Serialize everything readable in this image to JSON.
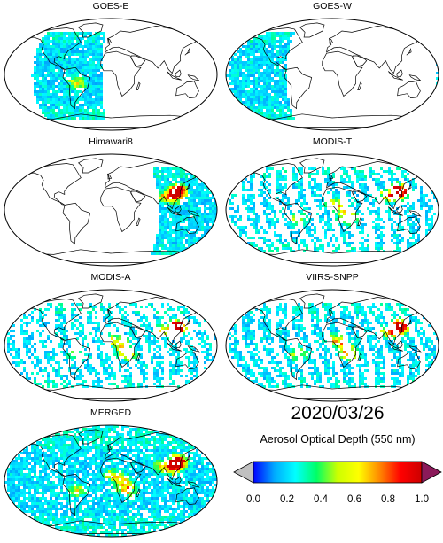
{
  "panels": [
    {
      "title": "GOES-E",
      "coverage": "lon-range",
      "lon_range": [
        -135,
        -15
      ],
      "lat_range": [
        -70,
        70
      ],
      "density": 0.92
    },
    {
      "title": "GOES-W",
      "coverage": "lon-range",
      "lon_range": [
        -180,
        -80
      ],
      "lat_range": [
        -70,
        70
      ],
      "density": 0.9,
      "wrap": true
    },
    {
      "title": "Himawari8",
      "coverage": "lon-range",
      "lon_range": [
        80,
        180
      ],
      "lat_range": [
        -70,
        70
      ],
      "density": 0.9,
      "wrap": true
    },
    {
      "title": "MODIS-T",
      "coverage": "swaths",
      "density": 0.62
    },
    {
      "title": "MODIS-A",
      "coverage": "swaths",
      "density": 0.62
    },
    {
      "title": "VIIRS-SNPP",
      "coverage": "swaths",
      "density": 0.72
    },
    {
      "title": "MERGED",
      "coverage": "global",
      "density": 0.82
    }
  ],
  "date": "2020/03/26",
  "colorbar": {
    "title": "Aerosol Optical Depth (550 nm)",
    "ticks": [
      "0.0",
      "0.2",
      "0.4",
      "0.6",
      "0.8",
      "1.0"
    ],
    "range": [
      0.0,
      1.0
    ],
    "colors": [
      "#0000ff",
      "#00aaff",
      "#00ffff",
      "#00ff66",
      "#ccff00",
      "#ffff00",
      "#ff8800",
      "#ff0000",
      "#cc0000"
    ],
    "under_color": "#c0c0c0",
    "over_color": "#8b1a5a"
  }
}
